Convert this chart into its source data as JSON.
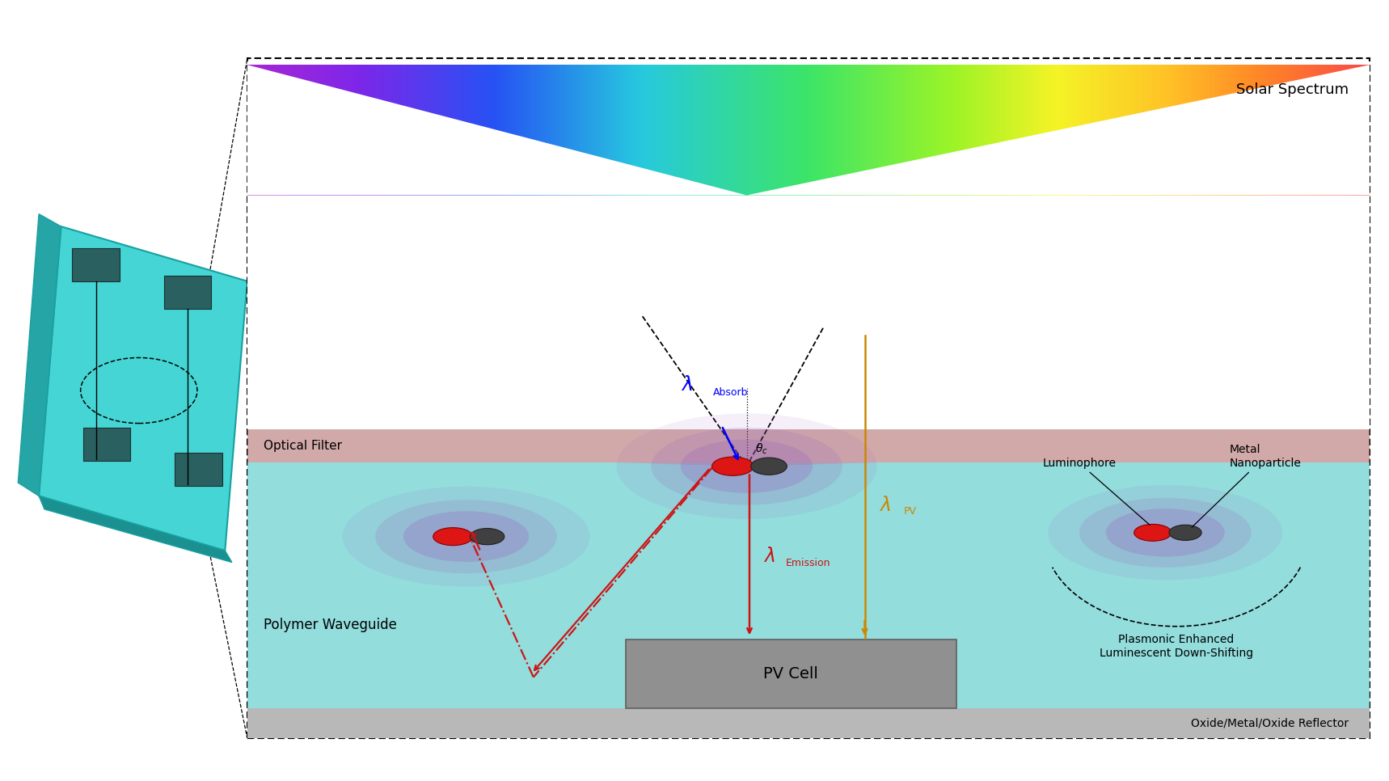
{
  "background": "#ffffff",
  "device_face_color": "#45d5d5",
  "device_side_color": "#25a5a5",
  "device_bottom_color": "#1a9090",
  "pad_color": "#2a6060",
  "waveguide_color": "#80d8d8",
  "filter_color": "#c08888",
  "reflector_color": "#b8b8b8",
  "pv_color": "#909090",
  "solar_spectrum_label": "Solar Spectrum",
  "optical_filter_label": "Optical Filter",
  "polymer_waveguide_label": "Polymer Waveguide",
  "pv_cell_label": "PV Cell",
  "oxide_reflector_label": "Oxide/Metal/Oxide Reflector",
  "luminophore_label": "Luminophore",
  "metal_nanoparticle_label": "Metal\nNanoparticle",
  "plasmonic_label": "Plasmonic Enhanced\nLuminescent Down-Shifting",
  "bx": 0.178,
  "by": 0.055,
  "bw": 0.808,
  "bh": 0.87
}
